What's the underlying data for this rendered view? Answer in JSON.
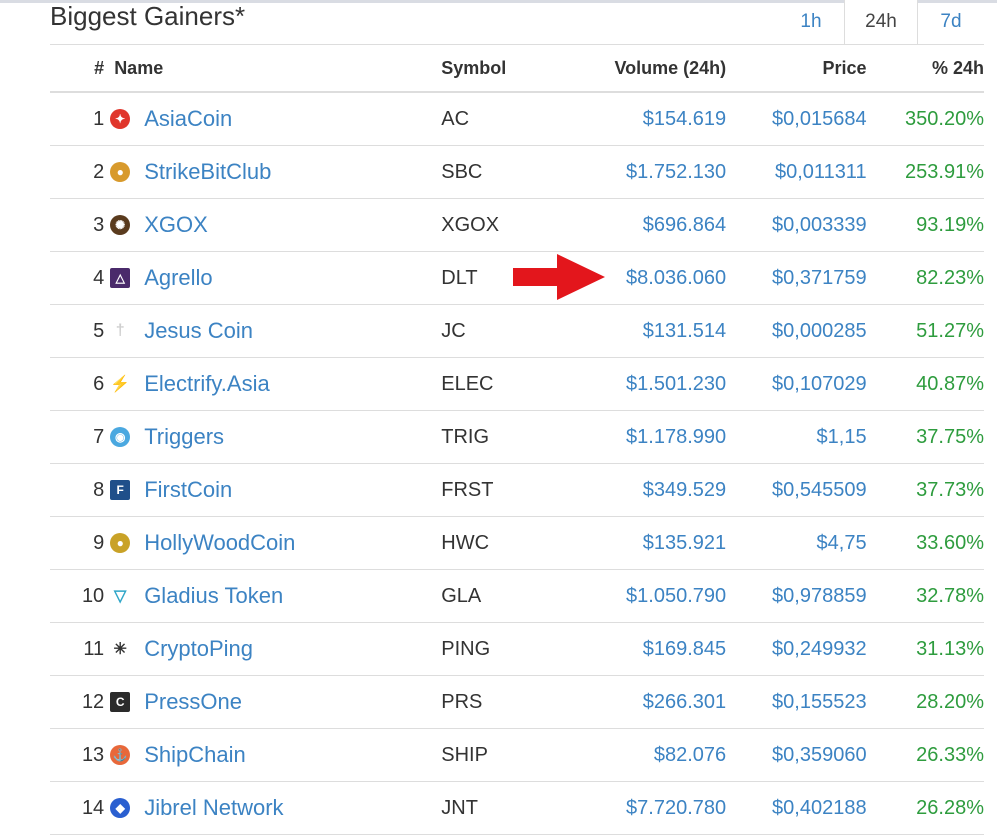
{
  "header": {
    "title": "Biggest Gainers*",
    "tabs": [
      {
        "label": "1h",
        "active": false
      },
      {
        "label": "24h",
        "active": true
      },
      {
        "label": "7d",
        "active": false
      }
    ]
  },
  "table": {
    "columns": {
      "rank": "#",
      "name": "Name",
      "symbol": "Symbol",
      "volume": "Volume (24h)",
      "price": "Price",
      "change": "% 24h"
    },
    "rows": [
      {
        "rank": "1",
        "name": "AsiaCoin",
        "symbol": "AC",
        "volume": "$154.619",
        "price": "$0,015684",
        "change": "350.20%",
        "icon": "asiacoin-logo-icon",
        "icon_color": "#e0362c"
      },
      {
        "rank": "2",
        "name": "StrikeBitClub",
        "symbol": "SBC",
        "volume": "$1.752.130",
        "price": "$0,011311",
        "change": "253.91%",
        "icon": "strikebitclub-logo-icon",
        "icon_color": "#d89a2c"
      },
      {
        "rank": "3",
        "name": "XGOX",
        "symbol": "XGOX",
        "volume": "$696.864",
        "price": "$0,003339",
        "change": "93.19%",
        "icon": "xgox-logo-icon",
        "icon_color": "#5a3b1e"
      },
      {
        "rank": "4",
        "name": "Agrello",
        "symbol": "DLT",
        "volume": "$8.036.060",
        "price": "$0,371759",
        "change": "82.23%",
        "icon": "agrello-logo-icon",
        "icon_color": "#4a2a6b"
      },
      {
        "rank": "5",
        "name": "Jesus Coin",
        "symbol": "JC",
        "volume": "$131.514",
        "price": "$0,000285",
        "change": "51.27%",
        "icon": "jesuscoin-logo-icon",
        "icon_color": "#cfcfcf"
      },
      {
        "rank": "6",
        "name": "Electrify.Asia",
        "symbol": "ELEC",
        "volume": "$1.501.230",
        "price": "$0,107029",
        "change": "40.87%",
        "icon": "electrify-logo-icon",
        "icon_color": "#f0b400"
      },
      {
        "rank": "7",
        "name": "Triggers",
        "symbol": "TRIG",
        "volume": "$1.178.990",
        "price": "$1,15",
        "change": "37.75%",
        "icon": "triggers-logo-icon",
        "icon_color": "#4aa8e0"
      },
      {
        "rank": "8",
        "name": "FirstCoin",
        "symbol": "FRST",
        "volume": "$349.529",
        "price": "$0,545509",
        "change": "37.73%",
        "icon": "firstcoin-logo-icon",
        "icon_color": "#1f4f8a"
      },
      {
        "rank": "9",
        "name": "HollyWoodCoin",
        "symbol": "HWC",
        "volume": "$135.921",
        "price": "$4,75",
        "change": "33.60%",
        "icon": "hollywoodcoin-logo-icon",
        "icon_color": "#c9a227"
      },
      {
        "rank": "10",
        "name": "Gladius Token",
        "symbol": "GLA",
        "volume": "$1.050.790",
        "price": "$0,978859",
        "change": "32.78%",
        "icon": "gladius-logo-icon",
        "icon_color": "#2fa6c8"
      },
      {
        "rank": "11",
        "name": "CryptoPing",
        "symbol": "PING",
        "volume": "$169.845",
        "price": "$0,249932",
        "change": "31.13%",
        "icon": "cryptoping-logo-icon",
        "icon_color": "#333333"
      },
      {
        "rank": "12",
        "name": "PressOne",
        "symbol": "PRS",
        "volume": "$266.301",
        "price": "$0,155523",
        "change": "28.20%",
        "icon": "pressone-logo-icon",
        "icon_color": "#2b2b2b"
      },
      {
        "rank": "13",
        "name": "ShipChain",
        "symbol": "SHIP",
        "volume": "$82.076",
        "price": "$0,359060",
        "change": "26.33%",
        "icon": "shipchain-logo-icon",
        "icon_color": "#e8683a"
      },
      {
        "rank": "14",
        "name": "Jibrel Network",
        "symbol": "JNT",
        "volume": "$7.720.780",
        "price": "$0,402188",
        "change": "26.28%",
        "icon": "jibrel-logo-icon",
        "icon_color": "#2a5fd0"
      }
    ]
  },
  "annotation": {
    "arrow_color": "#e3161c",
    "arrow_target": "Agrello volume"
  },
  "colors": {
    "link": "#3c83c3",
    "positive": "#2e9c3e",
    "border": "#dddddd"
  }
}
